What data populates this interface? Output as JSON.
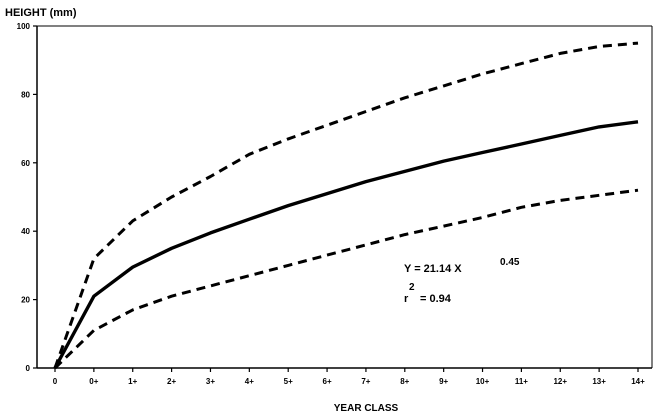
{
  "chart_data": {
    "type": "line",
    "ylabel": "HEIGHT (mm)",
    "xlabel": "YEAR CLASS",
    "categories": [
      "0",
      "0+",
      "1+",
      "2+",
      "3+",
      "4+",
      "5+",
      "6+",
      "7+",
      "8+",
      "9+",
      "10+",
      "11+",
      "12+",
      "13+",
      "14+"
    ],
    "ylim": [
      0,
      100
    ],
    "yticks": [
      "0",
      "20",
      "40",
      "60",
      "80",
      "100"
    ],
    "grid": false,
    "series": [
      {
        "style": "dashed",
        "color": "#000000",
        "values": [
          0,
          32,
          43,
          50,
          56,
          62.5,
          67,
          71,
          75,
          79,
          82.5,
          86,
          89,
          92,
          94,
          95
        ]
      },
      {
        "style": "solid",
        "color": "#000000",
        "values": [
          0,
          21,
          29.5,
          35,
          39.5,
          43.5,
          47.5,
          51,
          54.5,
          57.5,
          60.5,
          63,
          65.5,
          68,
          70.5,
          72
        ]
      },
      {
        "style": "dashed",
        "color": "#000000",
        "values": [
          0,
          11,
          17,
          21,
          24,
          27,
          30,
          33,
          36,
          39,
          41.5,
          44,
          47,
          49,
          50.5,
          52
        ]
      }
    ],
    "annotations": {
      "equation_main": "Y = 21.14 X",
      "equation_exponent": "0.45",
      "r_symbol": "r",
      "r_exponent": "2",
      "r_value": "= 0.94"
    }
  }
}
